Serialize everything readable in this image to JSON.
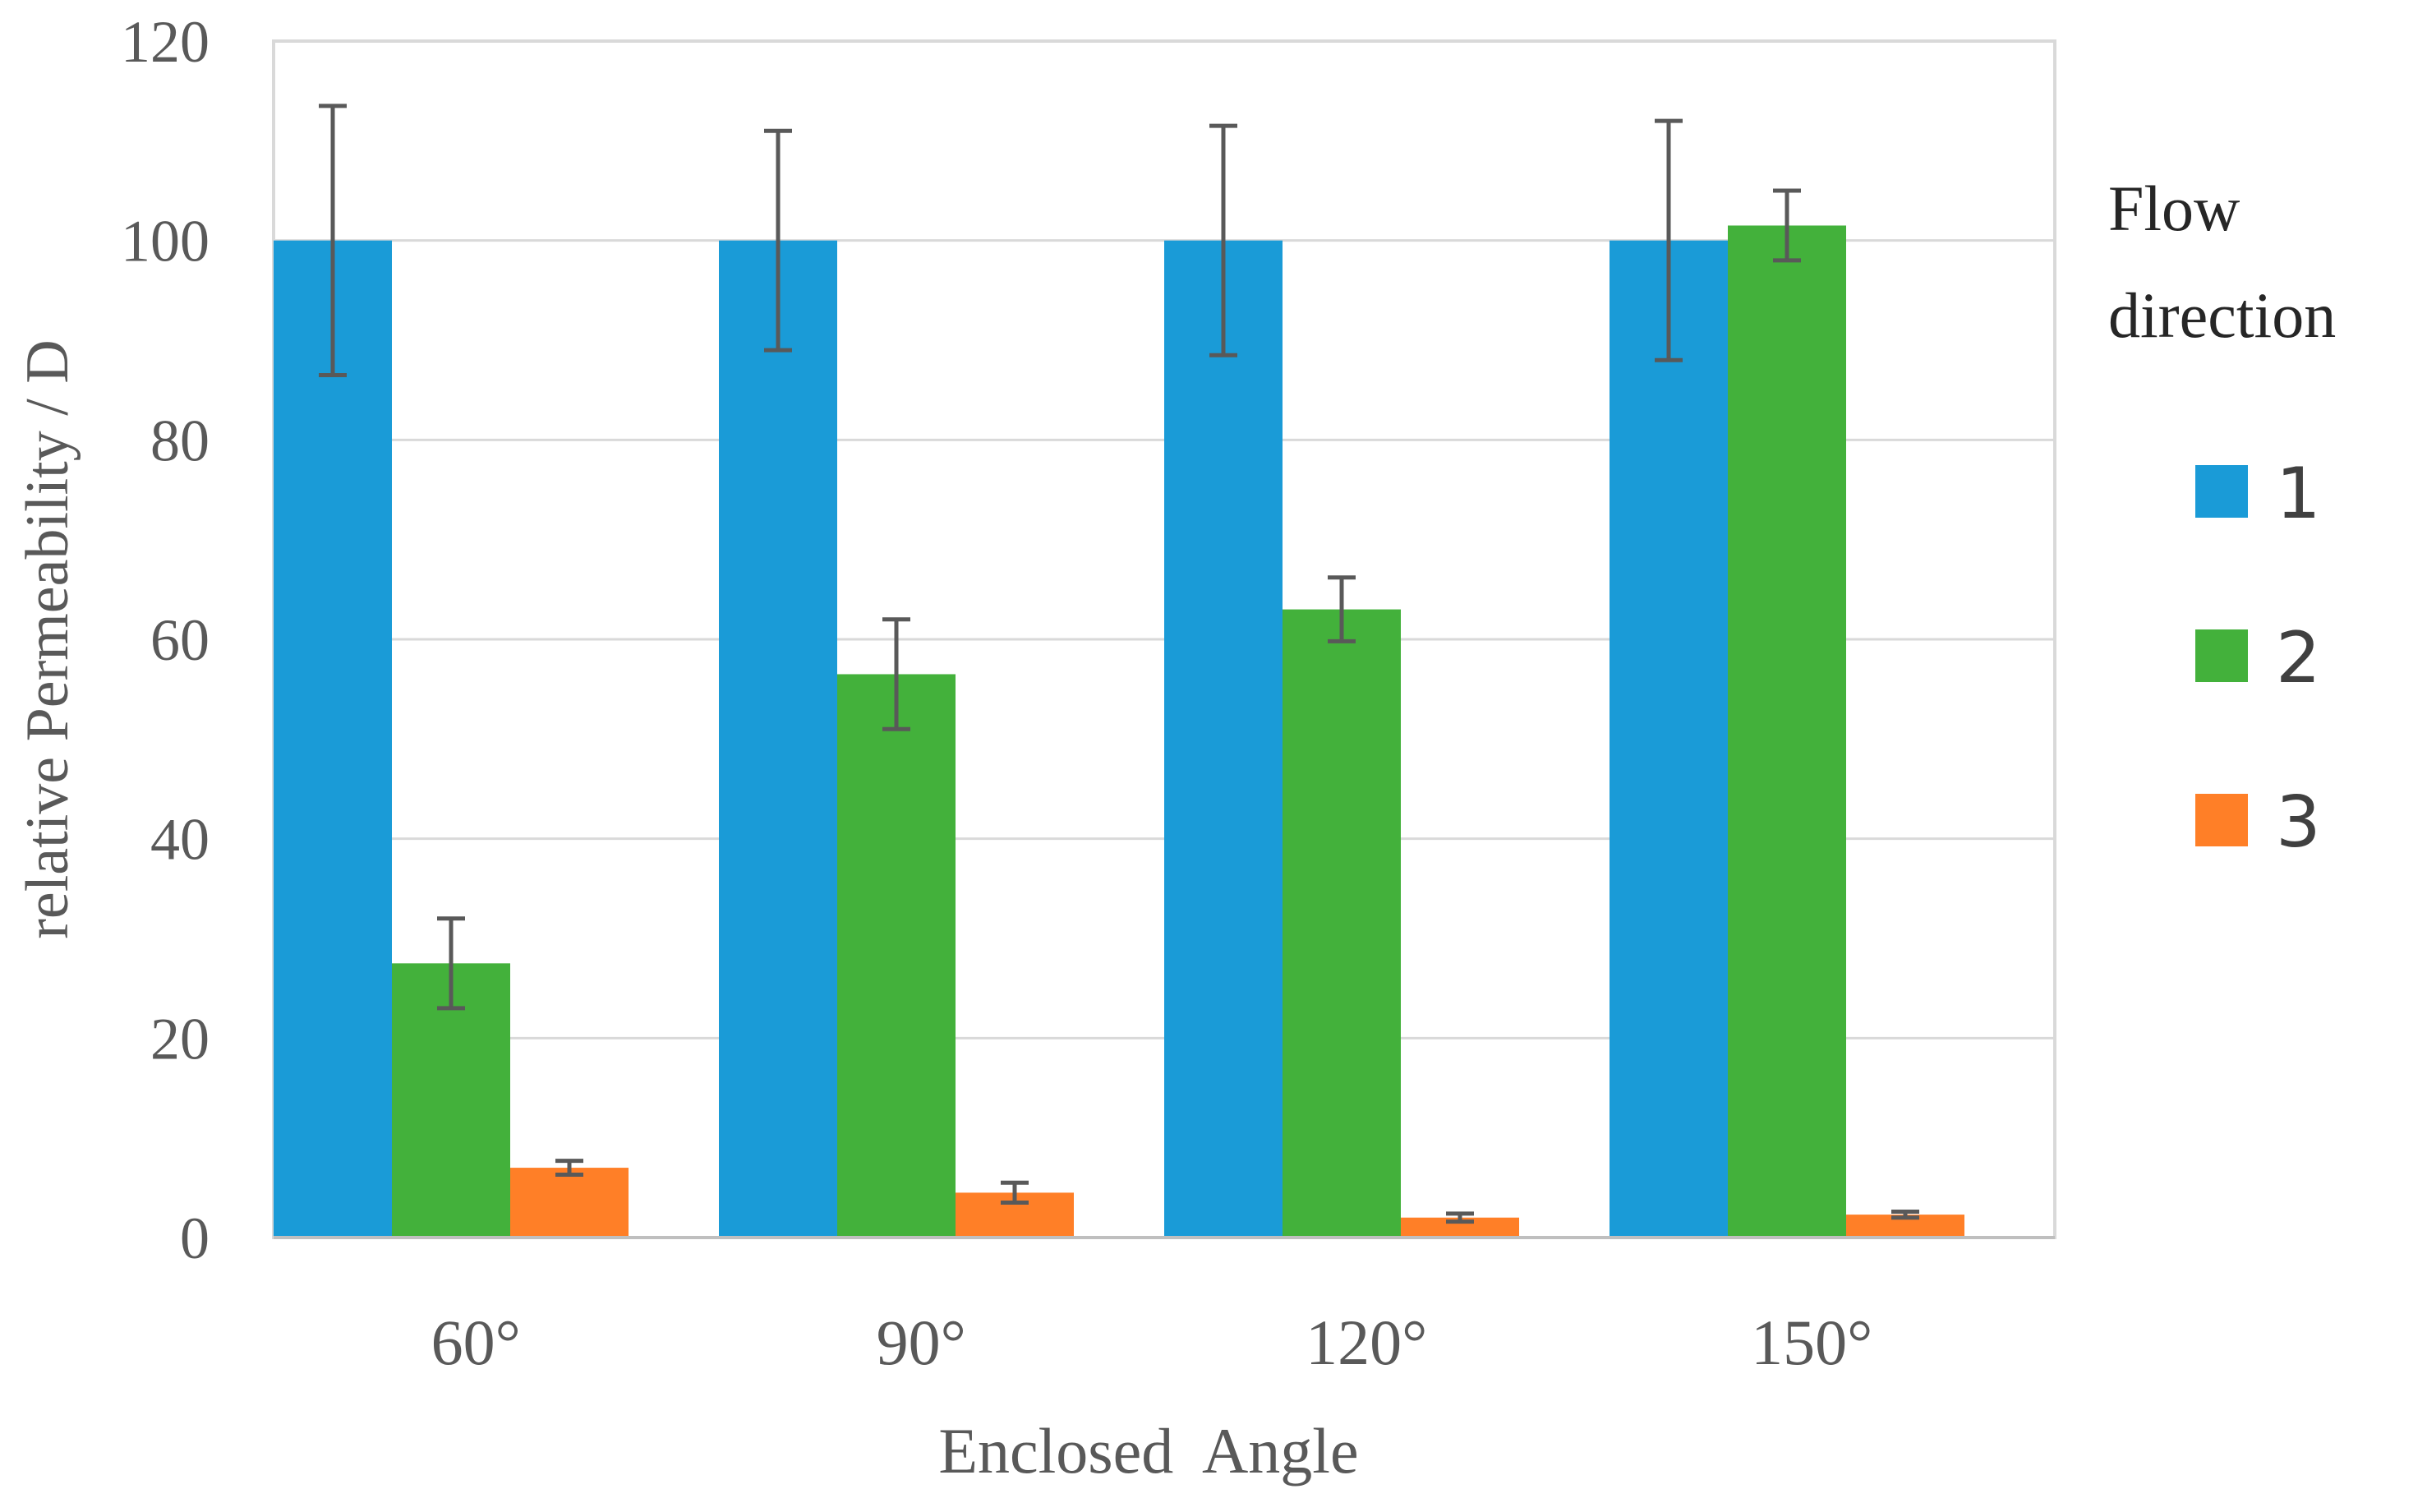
{
  "chart_data": {
    "type": "bar",
    "title": "",
    "xlabel": "Enclosed  Angle",
    "ylabel": "relative Permeability / D",
    "categories": [
      "60°",
      "90°",
      "120°",
      "150°"
    ],
    "ylim": [
      0,
      120
    ],
    "yticks": [
      0,
      20,
      40,
      60,
      80,
      100,
      120
    ],
    "grid": true,
    "legend": {
      "title_lines": [
        "Flow",
        "direction"
      ],
      "placement": "right"
    },
    "series": [
      {
        "name": "1",
        "color": "#1a9bd7",
        "values": [
          100,
          100,
          100,
          100
        ],
        "errors": [
          13.5,
          11,
          11.5,
          12
        ]
      },
      {
        "name": "2",
        "color": "#43b13b",
        "values": [
          27.5,
          56.5,
          63,
          101.5
        ],
        "errors": [
          4.5,
          5.5,
          3.2,
          3.5
        ]
      },
      {
        "name": "3",
        "color": "#ff7f27",
        "values": [
          7,
          4.5,
          2,
          2.3
        ],
        "errors": [
          0.7,
          1,
          0.4,
          0.3
        ]
      }
    ]
  }
}
